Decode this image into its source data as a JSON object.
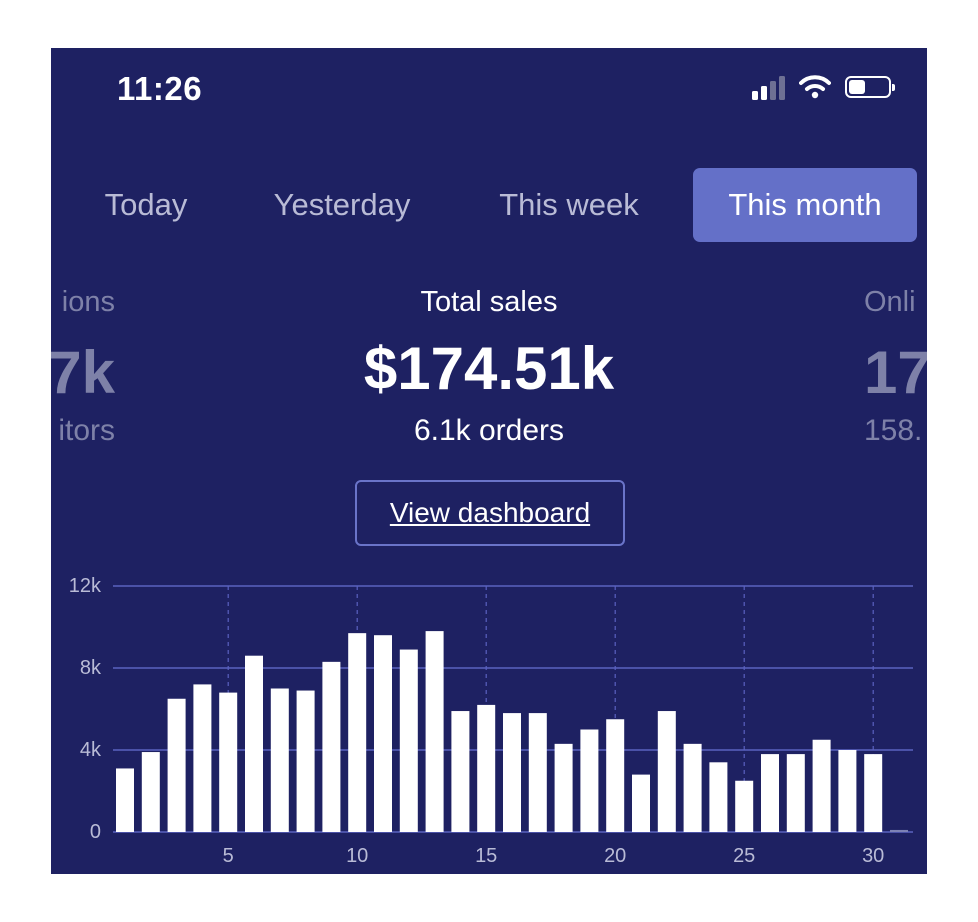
{
  "status_bar": {
    "time": "11:26"
  },
  "tabs": [
    {
      "label": "Today",
      "active": false
    },
    {
      "label": "Yesterday",
      "active": false
    },
    {
      "label": "This week",
      "active": false
    },
    {
      "label": "This month",
      "active": true
    }
  ],
  "stats": {
    "left": {
      "label": "ions",
      "value": "7k",
      "sub": "itors"
    },
    "center": {
      "label": "Total sales",
      "value": "$174.51k",
      "sub": "6.1k orders"
    },
    "right": {
      "label": "Onli",
      "value": "17",
      "sub": "158."
    }
  },
  "dashboard_button": {
    "label": "View dashboard"
  },
  "colors": {
    "background": "#1e2162",
    "accent": "#6470c8",
    "bar": "#ffffff",
    "grid": "#5a62c0"
  },
  "chart_data": {
    "type": "bar",
    "x": [
      1,
      2,
      3,
      4,
      5,
      6,
      7,
      8,
      9,
      10,
      11,
      12,
      13,
      14,
      15,
      16,
      17,
      18,
      19,
      20,
      21,
      22,
      23,
      24,
      25,
      26,
      27,
      28,
      29,
      30,
      31
    ],
    "values": [
      3100,
      3900,
      6500,
      7200,
      6800,
      8600,
      7000,
      6900,
      8300,
      9700,
      9600,
      8900,
      9800,
      5900,
      6200,
      5800,
      5800,
      4300,
      5000,
      5500,
      2800,
      5900,
      4300,
      3400,
      2500,
      3800,
      3800,
      4500,
      4000,
      3800,
      100
    ],
    "x_tick_labels": [
      "5",
      "10",
      "15",
      "20",
      "25",
      "30"
    ],
    "x_ticks": [
      5,
      10,
      15,
      20,
      25,
      30
    ],
    "y_tick_labels": [
      "0",
      "4k",
      "8k",
      "12k"
    ],
    "y_ticks": [
      0,
      4000,
      8000,
      12000
    ],
    "ylim": [
      0,
      12000
    ],
    "grid": true
  }
}
